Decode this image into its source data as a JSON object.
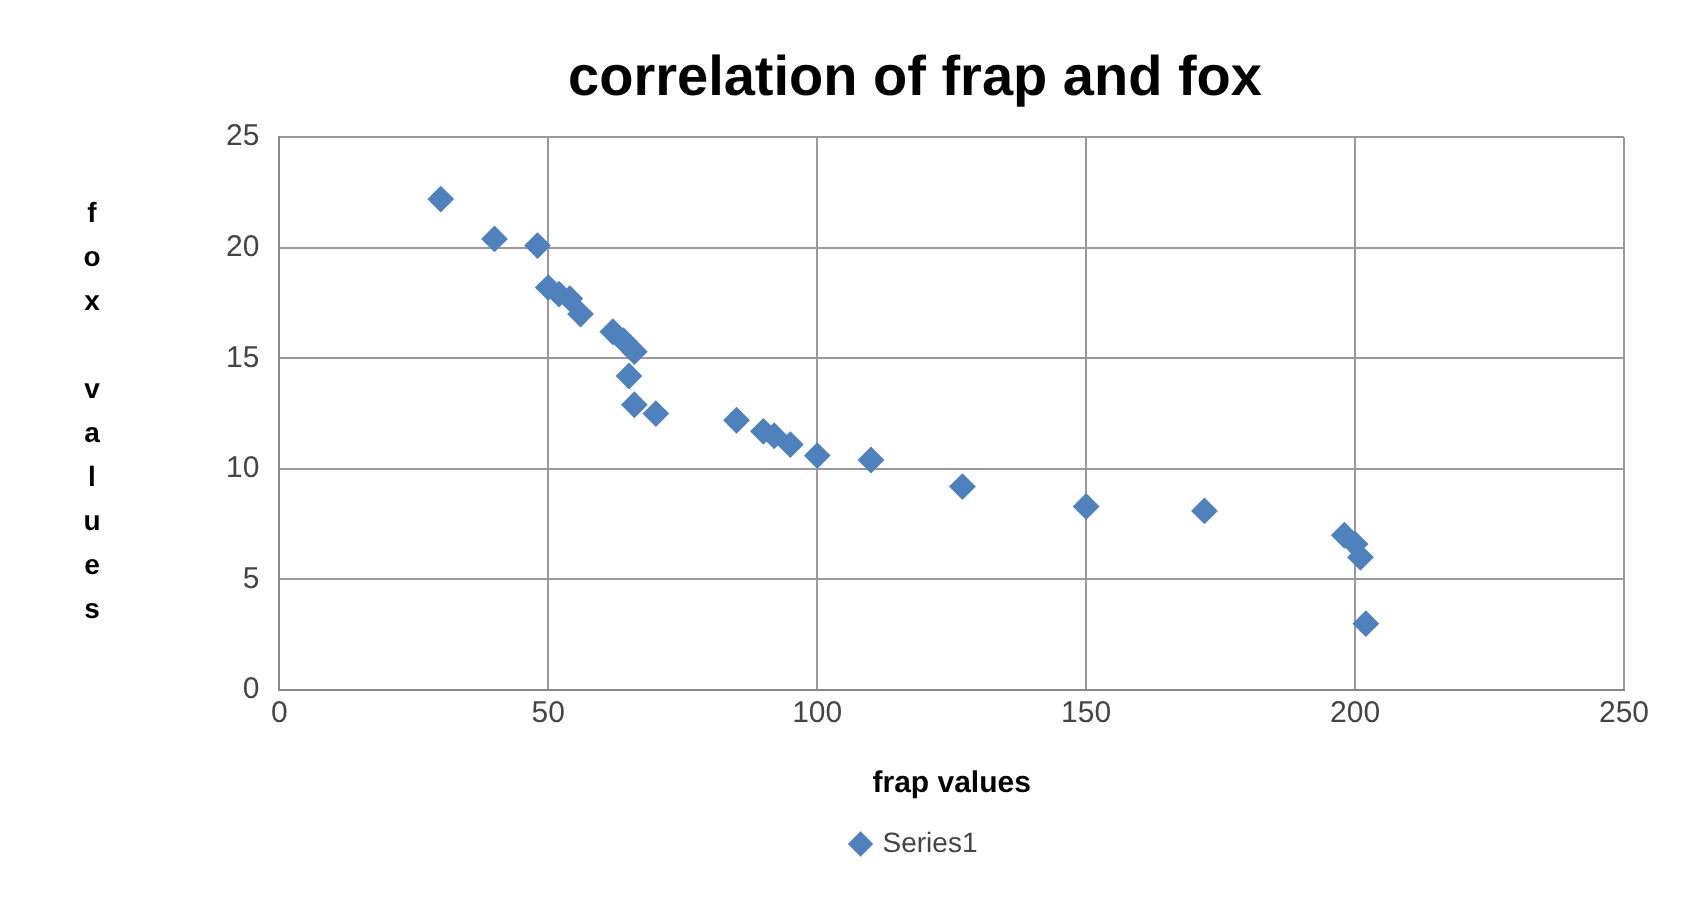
{
  "chart_data": {
    "type": "scatter",
    "title": "correlation of frap and fox",
    "xlabel": "frap values",
    "ylabel": "fox values",
    "xlim": [
      0,
      250
    ],
    "xticks": [
      0,
      50,
      100,
      150,
      200,
      250
    ],
    "ylim": [
      0,
      25
    ],
    "yticks": [
      0,
      5,
      10,
      15,
      20,
      25
    ],
    "grid": true,
    "legend": "bottom",
    "marker": "diamond",
    "series": [
      {
        "name": "Series1",
        "color": "#4f81bd",
        "x": [
          30,
          40,
          48,
          50,
          52,
          54,
          56,
          62,
          64,
          66,
          65,
          66,
          70,
          85,
          90,
          92,
          95,
          100,
          110,
          127,
          150,
          172,
          198,
          200,
          201,
          202
        ],
        "values": [
          22.2,
          20.4,
          20.1,
          18.2,
          17.9,
          17.7,
          17.0,
          16.2,
          15.8,
          15.3,
          14.2,
          12.9,
          12.5,
          12.2,
          11.7,
          11.5,
          11.1,
          10.6,
          10.4,
          9.2,
          8.3,
          8.1,
          7.0,
          6.6,
          6.0,
          3.0
        ]
      }
    ]
  }
}
